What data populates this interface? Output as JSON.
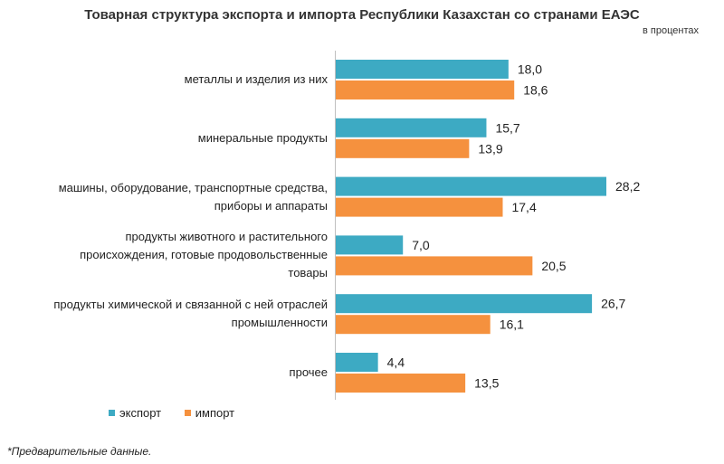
{
  "title": "Товарная структура экспорта и импорта Республики Казахстан со странами ЕАЭС",
  "subtitle": "в процентах",
  "note": "*Предварительные данные.",
  "colors": {
    "export": "#3daac3",
    "import": "#f5913e"
  },
  "chart_data": {
    "type": "bar",
    "orientation": "horizontal",
    "categories": [
      [
        "металлы и изделия из них"
      ],
      [
        "минеральные продукты"
      ],
      [
        "машины, оборудование, транспортные средства,",
        "приборы и аппараты"
      ],
      [
        "продукты животного и растительного",
        "происхождения, готовые продовольственные",
        "товары"
      ],
      [
        "продукты химической и связанной с ней отраслей",
        "промышленности"
      ],
      [
        "прочее"
      ]
    ],
    "series": [
      {
        "name": "экспорт",
        "values": [
          18.0,
          15.7,
          28.2,
          7.0,
          26.7,
          4.4
        ],
        "labels": [
          "18,0",
          "15,7",
          "28,2",
          "7,0",
          "26,7",
          "4,4"
        ]
      },
      {
        "name": "импорт",
        "values": [
          18.6,
          13.9,
          17.4,
          20.5,
          16.1,
          13.5
        ],
        "labels": [
          "18,6",
          "13,9",
          "17,4",
          "20,5",
          "16,1",
          "13,5"
        ]
      }
    ],
    "xlim": [
      0,
      30
    ],
    "grid": false,
    "legend": "bottom-left"
  }
}
